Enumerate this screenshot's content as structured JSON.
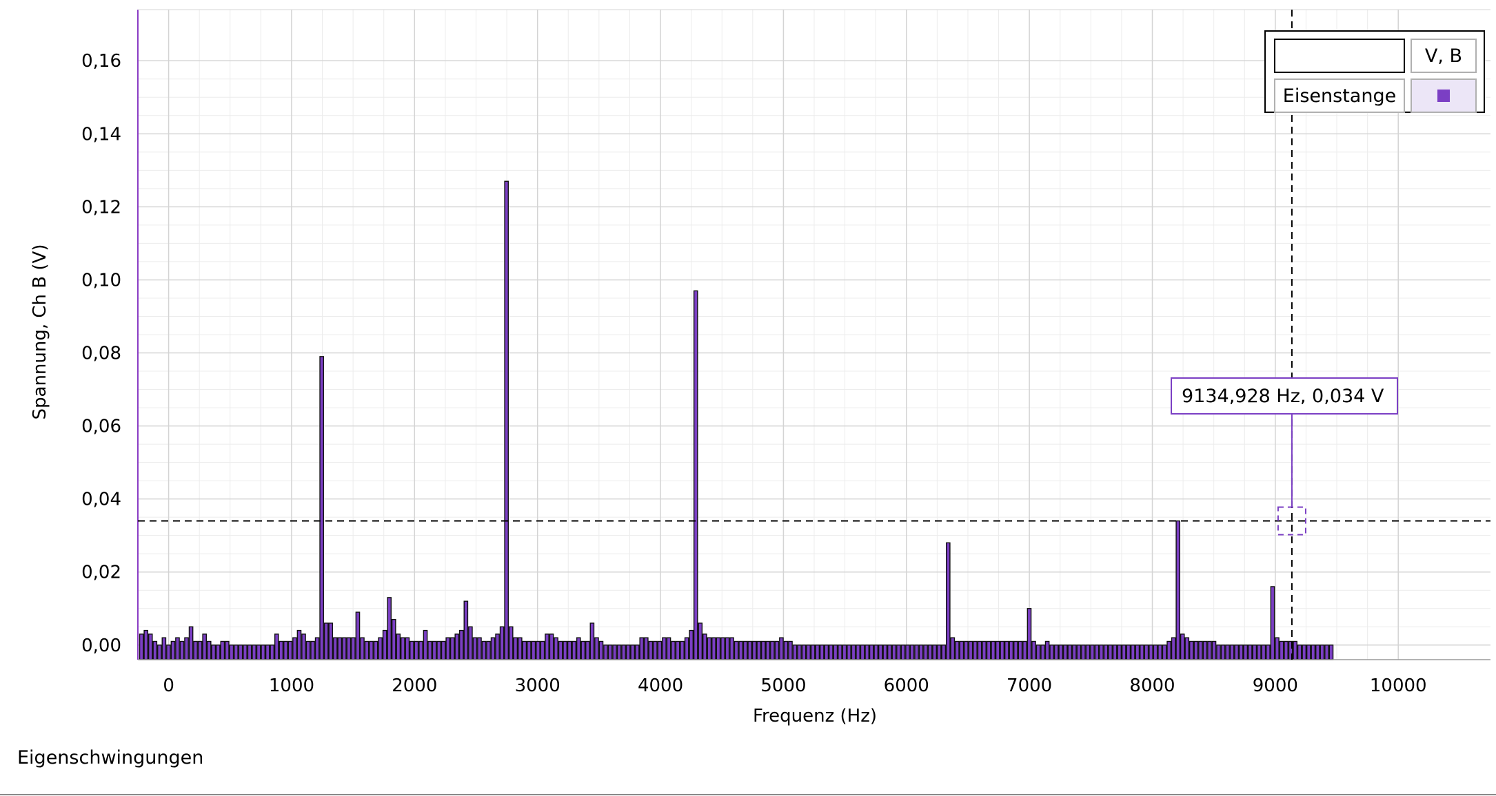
{
  "caption": "Eigenschwingungen",
  "legend": {
    "header": "V, B",
    "series_name": "Eisenstange"
  },
  "cursor_readout": "9134,928 Hz, 0,034 V",
  "colors": {
    "bar_fill": "#7b3fc4",
    "bar_stroke": "#111111",
    "grid": "#d4d4d4",
    "plot_left_border": "#8a3cc4"
  },
  "chart_data": {
    "type": "bar",
    "xlabel": "Frequenz (Hz)",
    "ylabel": "Spannung, Ch B (V)",
    "xlim": [
      -250,
      10750
    ],
    "ylim": [
      -0.004,
      0.174
    ],
    "x_ticks": [
      0,
      1000,
      2000,
      3000,
      4000,
      5000,
      6000,
      7000,
      8000,
      9000,
      10000
    ],
    "y_ticks": [
      0.0,
      0.02,
      0.04,
      0.06,
      0.08,
      0.1,
      0.12,
      0.14,
      0.16
    ],
    "y_tick_labels": [
      "0,00",
      "0,02",
      "0,04",
      "0,06",
      "0,08",
      "0,10",
      "0,12",
      "0,14",
      "0,16"
    ],
    "cursor": {
      "x": 9134.928,
      "y": 0.034
    },
    "series": [
      {
        "name": "Eisenstange",
        "bin_start": -221,
        "bin_width": 36.65,
        "values": [
          0.003,
          0.004,
          0.003,
          0.001,
          0,
          0.002,
          0,
          0.001,
          0.002,
          0.001,
          0.002,
          0.005,
          0.001,
          0.001,
          0.003,
          0.001,
          0,
          0,
          0.001,
          0.001,
          0,
          0,
          0,
          0,
          0,
          0,
          0,
          0,
          0,
          0,
          0.003,
          0.001,
          0.001,
          0.001,
          0.002,
          0.004,
          0.003,
          0.001,
          0.001,
          0.002,
          0.079,
          0.006,
          0.006,
          0.002,
          0.002,
          0.002,
          0.002,
          0.002,
          0.009,
          0.002,
          0.001,
          0.001,
          0.001,
          0.002,
          0.004,
          0.013,
          0.007,
          0.003,
          0.002,
          0.002,
          0.001,
          0.001,
          0.001,
          0.004,
          0.001,
          0.001,
          0.001,
          0.001,
          0.002,
          0.002,
          0.003,
          0.004,
          0.012,
          0.005,
          0.002,
          0.002,
          0.001,
          0.001,
          0.002,
          0.003,
          0.005,
          0.127,
          0.005,
          0.002,
          0.002,
          0.001,
          0.001,
          0.001,
          0.001,
          0.001,
          0.003,
          0.003,
          0.002,
          0.001,
          0.001,
          0.001,
          0.001,
          0.002,
          0.001,
          0.001,
          0.006,
          0.002,
          0.001,
          0,
          0,
          0,
          0,
          0,
          0,
          0,
          0,
          0.002,
          0.002,
          0.001,
          0.001,
          0.001,
          0.002,
          0.002,
          0.001,
          0.001,
          0.001,
          0.002,
          0.004,
          0.097,
          0.006,
          0.003,
          0.002,
          0.002,
          0.002,
          0.002,
          0.002,
          0.002,
          0.001,
          0.001,
          0.001,
          0.001,
          0.001,
          0.001,
          0.001,
          0.001,
          0.001,
          0.001,
          0.002,
          0.001,
          0.001,
          0,
          0,
          0,
          0,
          0,
          0,
          0,
          0,
          0,
          0,
          0,
          0,
          0,
          0,
          0,
          0,
          0,
          0,
          0,
          0,
          0,
          0,
          0,
          0,
          0,
          0,
          0,
          0,
          0,
          0,
          0,
          0,
          0,
          0,
          0.028,
          0.002,
          0.001,
          0.001,
          0.001,
          0.001,
          0.001,
          0.001,
          0.001,
          0.001,
          0.001,
          0.001,
          0.001,
          0.001,
          0.001,
          0.001,
          0.001,
          0.001,
          0.01,
          0.001,
          0,
          0,
          0.001,
          0,
          0,
          0,
          0,
          0,
          0,
          0,
          0,
          0,
          0,
          0,
          0,
          0,
          0,
          0,
          0,
          0,
          0,
          0,
          0,
          0,
          0,
          0,
          0,
          0,
          0,
          0.001,
          0.002,
          0.034,
          0.003,
          0.002,
          0.001,
          0.001,
          0.001,
          0.001,
          0.001,
          0.001,
          0,
          0,
          0,
          0,
          0,
          0,
          0,
          0,
          0,
          0,
          0,
          0,
          0.016,
          0.002,
          0.001,
          0.001,
          0.001,
          0.001,
          0,
          0,
          0,
          0,
          0,
          0,
          0,
          0
        ]
      }
    ]
  }
}
